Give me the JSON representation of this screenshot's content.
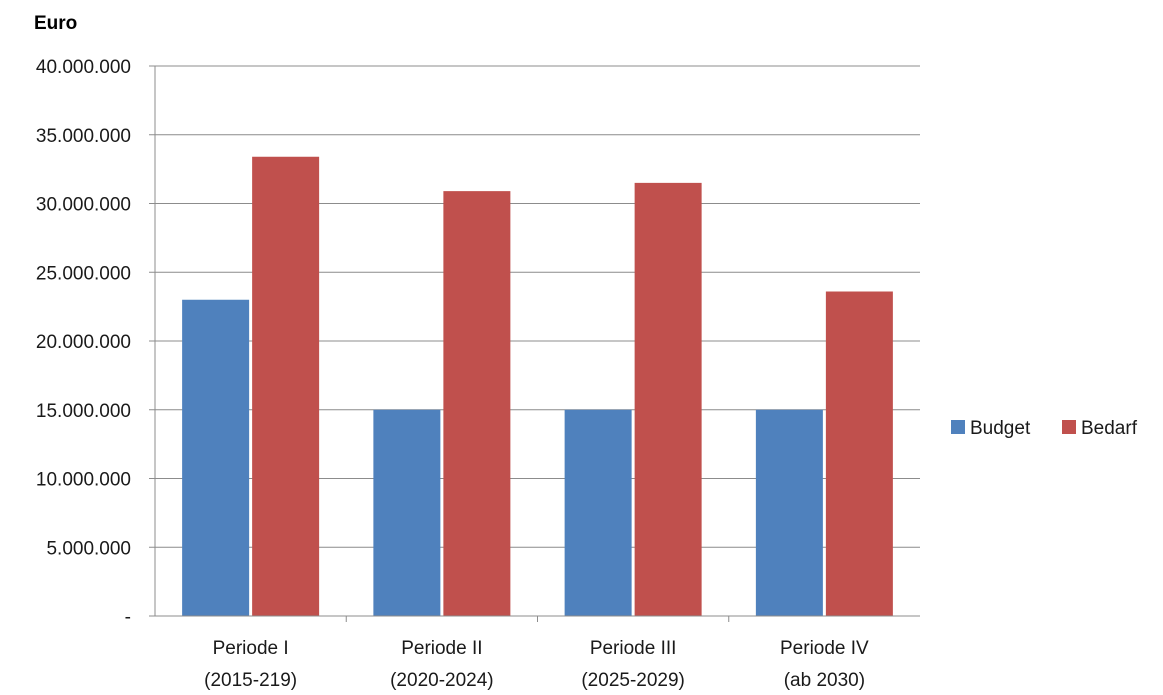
{
  "chart_data": {
    "type": "bar",
    "ylabel": "Euro",
    "xlabel": "",
    "categories": [
      [
        "Periode I",
        "(2015-219)"
      ],
      [
        "Periode II",
        "(2020-2024)"
      ],
      [
        "Periode III",
        "(2025-2029)"
      ],
      [
        "Periode IV",
        "(ab 2030)"
      ]
    ],
    "series": [
      {
        "name": "Budget",
        "color": "#4F81BD",
        "values": [
          23000000,
          15000000,
          15000000,
          15000000
        ]
      },
      {
        "name": "Bedarf",
        "color": "#C0504D",
        "values": [
          33400000,
          30900000,
          31500000,
          23600000
        ]
      }
    ],
    "ylim": [
      0,
      40000000
    ],
    "yticks": [
      {
        "value": 0,
        "label": "-"
      },
      {
        "value": 5000000,
        "label": "5.000.000"
      },
      {
        "value": 10000000,
        "label": "10.000.000"
      },
      {
        "value": 15000000,
        "label": "15.000.000"
      },
      {
        "value": 20000000,
        "label": "20.000.000"
      },
      {
        "value": 25000000,
        "label": "25.000.000"
      },
      {
        "value": 30000000,
        "label": "30.000.000"
      },
      {
        "value": 35000000,
        "label": "35.000.000"
      },
      {
        "value": 40000000,
        "label": "40.000.000"
      }
    ],
    "grid": true,
    "legend": "right"
  }
}
